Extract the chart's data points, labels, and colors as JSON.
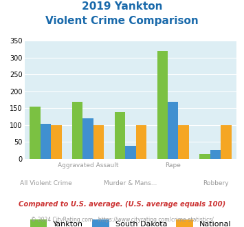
{
  "title_line1": "2019 Yankton",
  "title_line2": "Violent Crime Comparison",
  "categories": [
    "All Violent Crime",
    "Aggravated Assault",
    "Murder & Mans...",
    "Rape",
    "Robbery"
  ],
  "top_labels": [
    "",
    "Aggravated Assault",
    "",
    "Rape",
    ""
  ],
  "bottom_labels": [
    "All Violent Crime",
    "",
    "Murder & Mans...",
    "",
    "Robbery"
  ],
  "yankton": [
    155,
    170,
    138,
    320,
    15
  ],
  "south_dakota": [
    105,
    120,
    38,
    170,
    27
  ],
  "national": [
    100,
    100,
    100,
    100,
    100
  ],
  "color_yankton": "#7bc142",
  "color_sd": "#4090d0",
  "color_national": "#f5a623",
  "ylim": [
    0,
    350
  ],
  "yticks": [
    0,
    50,
    100,
    150,
    200,
    250,
    300,
    350
  ],
  "footnote": "Compared to U.S. average. (U.S. average equals 100)",
  "copyright": "© 2024 CityRating.com - https://www.cityrating.com/crime-statistics/",
  "bg_color": "#ddeef4",
  "title_color": "#1a6aab",
  "footnote_color": "#cc3333",
  "copyright_color": "#999999",
  "label_color": "#999999"
}
